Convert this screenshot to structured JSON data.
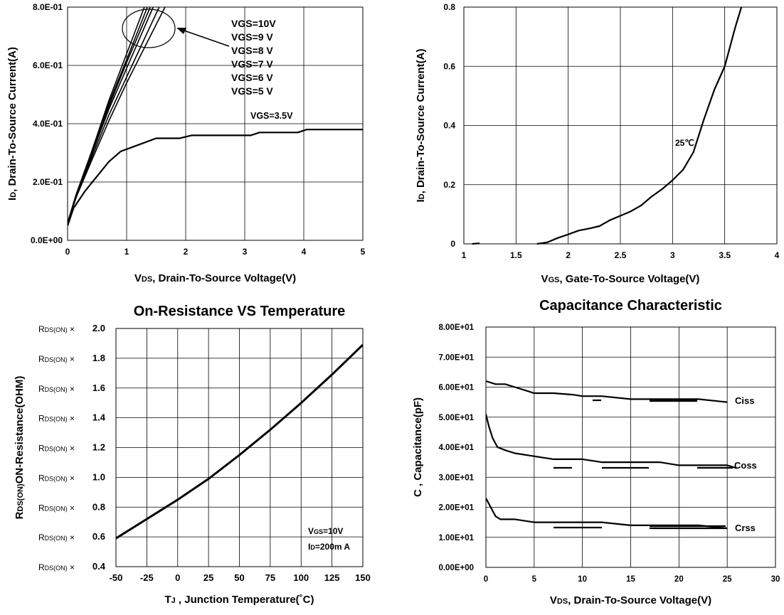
{
  "chart_data": [
    {
      "id": "output",
      "type": "line",
      "title": "",
      "xlabel": "V<sub>DS</sub>, Drain-To-Source Voltage(V)",
      "ylabel": "I<sub>D</sub>, Drain-To-Source Current(A)",
      "xlim": [
        0,
        5
      ],
      "ylim": [
        0,
        0.8
      ],
      "x_ticks": [
        0,
        1,
        2,
        3,
        4,
        5
      ],
      "x_tick_labels": [
        "0",
        "1",
        "2",
        "3",
        "4",
        "5"
      ],
      "y_ticks": [
        0,
        0.2,
        0.4,
        0.6,
        0.8
      ],
      "y_tick_labels": [
        "0.0E+00",
        "2.0E-01",
        "4.0E-01",
        "6.0E-01",
        "8.0E-01"
      ],
      "grid": true,
      "legend": {
        "position": "top-right",
        "entries": [
          "VGS=10V",
          "VGS=9   V",
          "VGS=8   V",
          "VGS=7   V",
          "VGS=6   V",
          "VGS=5 V"
        ]
      },
      "annotations": [
        "VGS=3.5V"
      ],
      "series": [
        {
          "name": "VGS=10V",
          "x": [
            0,
            0.15,
            0.4,
            0.7,
            1.0,
            1.3
          ],
          "y": [
            0.06,
            0.16,
            0.3,
            0.48,
            0.64,
            0.8
          ]
        },
        {
          "name": "VGS=9 V",
          "x": [
            0,
            0.15,
            0.4,
            0.7,
            1.0,
            1.35
          ],
          "y": [
            0.06,
            0.16,
            0.3,
            0.47,
            0.62,
            0.8
          ]
        },
        {
          "name": "VGS=8 V",
          "x": [
            0,
            0.15,
            0.4,
            0.7,
            1.0,
            1.4
          ],
          "y": [
            0.06,
            0.16,
            0.29,
            0.46,
            0.61,
            0.8
          ]
        },
        {
          "name": "VGS=7 V",
          "x": [
            0,
            0.15,
            0.4,
            0.7,
            1.0,
            1.45
          ],
          "y": [
            0.06,
            0.16,
            0.29,
            0.45,
            0.59,
            0.8
          ]
        },
        {
          "name": "VGS=6 V",
          "x": [
            0,
            0.15,
            0.4,
            0.7,
            1.0,
            1.55
          ],
          "y": [
            0.06,
            0.15,
            0.28,
            0.43,
            0.56,
            0.8
          ]
        },
        {
          "name": "VGS=5 V",
          "x": [
            0,
            0.15,
            0.4,
            0.7,
            1.0,
            1.65
          ],
          "y": [
            0.06,
            0.15,
            0.27,
            0.41,
            0.54,
            0.8
          ]
        },
        {
          "name": "VGS=3.5V",
          "x": [
            0,
            0.1,
            0.3,
            0.5,
            0.7,
            0.9,
            1.1,
            1.5,
            1.9,
            2.1,
            3.1,
            3.25,
            3.9,
            4.05,
            5.0
          ],
          "y": [
            0.05,
            0.11,
            0.17,
            0.22,
            0.27,
            0.305,
            0.32,
            0.35,
            0.35,
            0.36,
            0.36,
            0.37,
            0.37,
            0.38,
            0.38
          ]
        }
      ]
    },
    {
      "id": "transfer",
      "type": "line",
      "title": "",
      "xlabel": "V<sub>GS</sub>, Gate-To-Source Voltage(V)",
      "ylabel": "I<sub>D</sub>, Drain-To-Source Current(A)",
      "xlim": [
        1,
        4
      ],
      "ylim": [
        0,
        0.8
      ],
      "x_ticks": [
        1,
        1.5,
        2,
        2.5,
        3,
        3.5,
        4
      ],
      "x_tick_labels": [
        "1",
        "1.5",
        "2",
        "2.5",
        "3",
        "3.5",
        "4"
      ],
      "y_ticks": [
        0,
        0.2,
        0.4,
        0.6,
        0.8
      ],
      "y_tick_labels": [
        "0",
        "0.2",
        "0.4",
        "0.6",
        "0.8"
      ],
      "grid": true,
      "annotations": [
        "25℃"
      ],
      "series": [
        {
          "name": "25℃",
          "x": [
            1.08,
            1.15
          ],
          "y": [
            0.0,
            0.002
          ]
        },
        {
          "name": "25℃",
          "x": [
            1.7,
            1.8,
            1.9,
            2.0,
            2.1,
            2.2,
            2.3,
            2.4,
            2.5,
            2.6,
            2.7,
            2.8,
            2.9,
            3.0,
            3.1,
            3.2,
            3.3,
            3.4,
            3.5,
            3.6,
            3.66
          ],
          "y": [
            0.0,
            0.005,
            0.02,
            0.032,
            0.045,
            0.052,
            0.06,
            0.08,
            0.095,
            0.11,
            0.13,
            0.16,
            0.185,
            0.215,
            0.25,
            0.31,
            0.42,
            0.52,
            0.6,
            0.73,
            0.8
          ]
        }
      ]
    },
    {
      "id": "rdson",
      "type": "line",
      "title": "On-Resistance VS Temperature",
      "xlabel": "T<sub>J</sub> , Junction Temperature(˚C)",
      "ylabel": "R<sub>DS(ON)</sub>ON-Resistance(OHM)",
      "xlim": [
        -50,
        150
      ],
      "ylim": [
        0.4,
        2.0
      ],
      "x_ticks": [
        -50,
        -25,
        0,
        25,
        50,
        75,
        100,
        125,
        150
      ],
      "x_tick_labels": [
        "-50",
        "-25",
        "0",
        "25",
        "50",
        "75",
        "100",
        "125",
        "150"
      ],
      "y_ticks": [
        0.4,
        0.6,
        0.8,
        1.0,
        1.2,
        1.4,
        1.6,
        1.8,
        2.0
      ],
      "y_tick_labels": [
        "0.4",
        "0.6",
        "0.8",
        "1.0",
        "1.2",
        "1.4",
        "1.6",
        "1.8",
        "2.0"
      ],
      "y_tick_prefix": "R<sub>DS(ON)</sub> ×",
      "grid": true,
      "annotations": [
        "V<sub>GS</sub>=10V",
        "I<sub>D</sub>=200m A"
      ],
      "series": [
        {
          "name": "RDS(ON)",
          "x": [
            -50,
            -25,
            0,
            25,
            50,
            75,
            100,
            125,
            150
          ],
          "y": [
            0.59,
            0.72,
            0.85,
            0.99,
            1.15,
            1.32,
            1.5,
            1.69,
            1.89
          ]
        }
      ]
    },
    {
      "id": "capacitance",
      "type": "line",
      "title": "Capacitance Characteristic",
      "xlabel": "V<sub>DS</sub>, Drain-To-Source Voltage(V)",
      "ylabel": "C , Capacitance(pF)",
      "xlim": [
        0,
        30
      ],
      "ylim": [
        0,
        80
      ],
      "x_ticks": [
        0,
        5,
        10,
        15,
        20,
        25,
        30
      ],
      "x_tick_labels": [
        "0",
        "5",
        "10",
        "15",
        "20",
        "25",
        "30"
      ],
      "y_ticks": [
        0,
        10,
        20,
        30,
        40,
        50,
        60,
        70,
        80
      ],
      "y_tick_labels": [
        "0.00E+00",
        "1.00E+01",
        "2.00E+01",
        "3.00E+01",
        "4.00E+01",
        "5.00E+01",
        "6.00E+01",
        "7.00E+01",
        "8.00E+01"
      ],
      "grid": true,
      "series": [
        {
          "name": "Ciss",
          "x": [
            0,
            1,
            2,
            3,
            4,
            5,
            7,
            9,
            10,
            12,
            15,
            18,
            20,
            22,
            25
          ],
          "y": [
            62,
            61,
            61,
            60,
            59,
            58,
            58,
            57.5,
            57,
            57,
            56,
            56,
            56,
            56,
            55
          ]
        },
        {
          "name": "Coss",
          "x": [
            0,
            0.3,
            0.7,
            1.2,
            2,
            3,
            5,
            7,
            10,
            12,
            15,
            18,
            20,
            22,
            25,
            26
          ],
          "y": [
            51,
            47,
            43,
            40,
            39,
            38,
            37,
            36,
            36,
            35,
            35,
            35,
            34,
            34,
            34,
            33
          ]
        },
        {
          "name": "Crss",
          "x": [
            0,
            0.5,
            1,
            1.5,
            2,
            3,
            5,
            8,
            12,
            15,
            18,
            20,
            22,
            25
          ],
          "y": [
            23,
            20,
            17,
            16,
            16,
            16,
            15,
            15,
            15,
            14,
            14,
            14,
            14,
            13
          ]
        }
      ]
    }
  ]
}
